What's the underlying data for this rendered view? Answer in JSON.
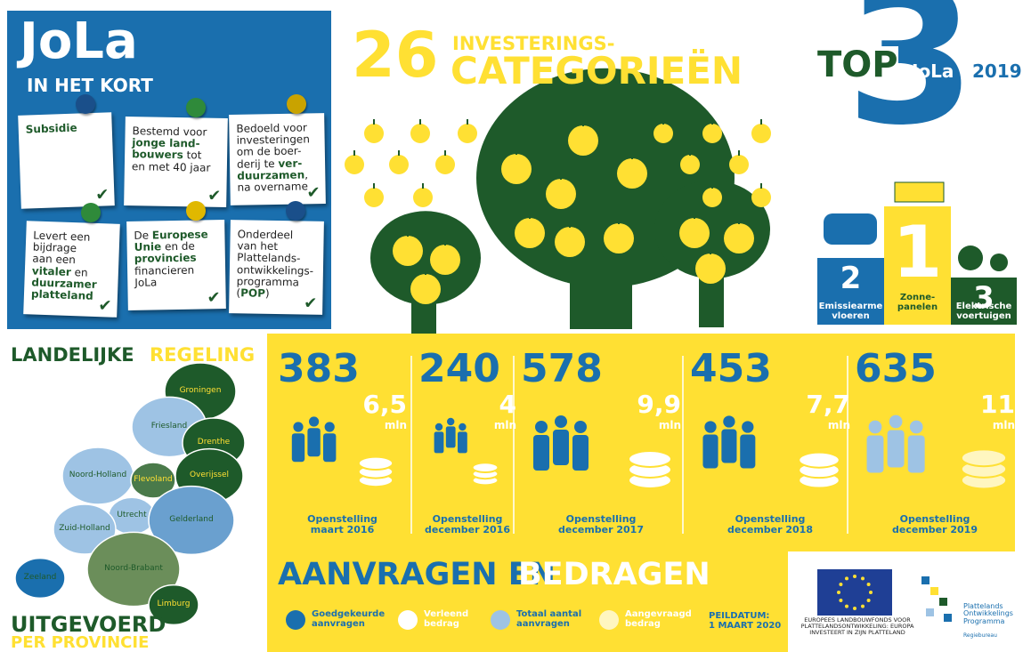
{
  "intro": {
    "title": "JoLa",
    "subtitle": "IN HET KORT",
    "notes": [
      [
        {
          "t": "Subsidie",
          "b": true
        }
      ],
      [
        {
          "t": "Bestemd voor\n"
        },
        {
          "t": "jonge land-\nbouwers",
          "b": true
        },
        {
          "t": " tot\nen met 40 jaar"
        }
      ],
      [
        {
          "t": "Bedoeld voor\ninvesteringen\nom de boer-\nderij te "
        },
        {
          "t": "ver-\nduurzamen",
          "b": true
        },
        {
          "t": ",\nna overname"
        }
      ],
      [
        {
          "t": "Levert een\nbijdrage\naan een\n"
        },
        {
          "t": "vitaler",
          "b": true
        },
        {
          "t": " en\n"
        },
        {
          "t": "duurzamer\nplatteland",
          "b": true
        }
      ],
      [
        {
          "t": "De "
        },
        {
          "t": "Europese\nUnie",
          "b": true
        },
        {
          "t": " en de\n"
        },
        {
          "t": "provincies",
          "b": true
        },
        {
          "t": "\nfinancieren\nJoLa"
        }
      ],
      [
        {
          "t": "Onderdeel\nvan het\nPlattelands-\nontwikkelings-\nprogramma\n("
        },
        {
          "t": "POP",
          "b": true
        },
        {
          "t": ")"
        }
      ]
    ]
  },
  "categories": {
    "number": "26",
    "line1": "INVESTERINGS-",
    "line2": "CATEGORIEËN"
  },
  "top3": {
    "top": "TOP",
    "three": "3",
    "jola": "JoLa",
    "year": "2019",
    "podium": [
      {
        "rank": "2",
        "label": "Emissiearme\nvloeren"
      },
      {
        "rank": "1",
        "label": "Zonne-\npanelen"
      },
      {
        "rank": "3",
        "label": "Elektrische\nvoertuigen"
      }
    ]
  },
  "map": {
    "title1": "LANDELIJKE",
    "title2": "REGELING",
    "footer1": "UITGEVOERD",
    "footer2": "PER PROVINCIE",
    "provinces": [
      "Groningen",
      "Friesland",
      "Drenthe",
      "Noord-Holland",
      "Flevoland",
      "Overijssel",
      "Utrecht",
      "Gelderland",
      "Zuid-Holland",
      "Noord-Brabant",
      "Zeeland",
      "Limburg"
    ]
  },
  "stats": [
    {
      "count": "383",
      "amount": "6,5",
      "unit": "mln",
      "label": "Openstelling\nmaart 2016"
    },
    {
      "count": "240",
      "amount": "4",
      "unit": "mln",
      "label": "Openstelling\ndecember 2016"
    },
    {
      "count": "578",
      "amount": "9,9",
      "unit": "mln",
      "label": "Openstelling\ndecember 2017"
    },
    {
      "count": "453",
      "amount": "7,7",
      "unit": "mln",
      "label": "Openstelling\ndecember 2018"
    },
    {
      "count": "635",
      "amount": "11",
      "unit": "mln",
      "label": "Openstelling\ndecember 2019"
    }
  ],
  "summary": {
    "heading1": "AANVRAGEN EN",
    "heading2": "BEDRAGEN",
    "legend": [
      "Goedgekeurde\naanvragen",
      "Verleend\nbedrag",
      "Totaal aantal\naanvragen",
      "Aangevraagd\nbedrag"
    ],
    "date": "PEILDATUM:\n1 MAART 2020"
  },
  "footer": {
    "eu": "EUROPEES LANDBOUWFONDS VOOR\nPLATTELANDSONTWIKKELING: EUROPA\nINVESTEERT IN ZIJN PLATTELAND",
    "pop": "Plattelands\nOntwikkelings\nProgramma",
    "pop_sub": "Regiebureau"
  }
}
